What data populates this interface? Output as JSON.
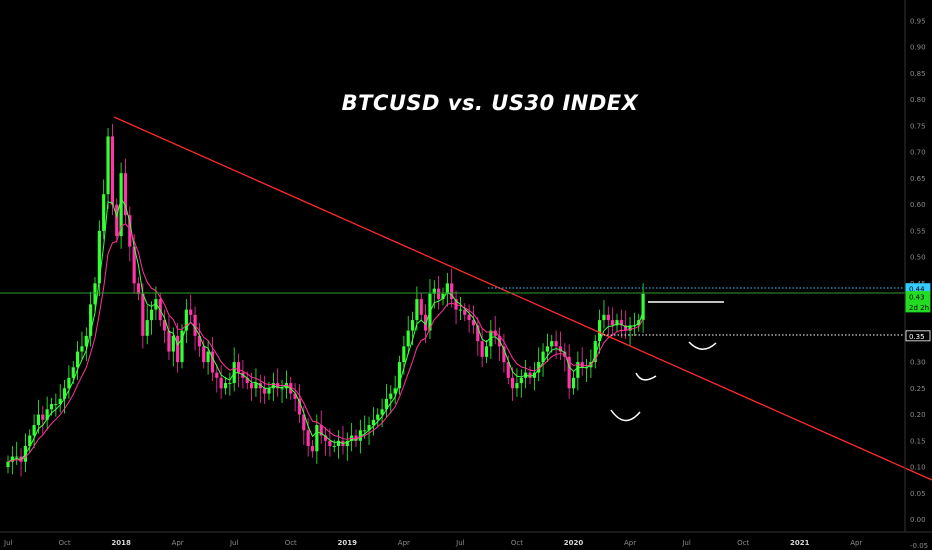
{
  "chart_data": {
    "type": "candlestick",
    "title": "BTCUSD vs. US30 INDEX",
    "ylim": [
      -0.02,
      0.99
    ],
    "y_ticks": [
      "0.95",
      "0.90",
      "0.85",
      "0.80",
      "0.75",
      "0.70",
      "0.65",
      "0.60",
      "0.55",
      "0.50",
      "0.45",
      "0.40",
      "0.35",
      "0.30",
      "0.25",
      "0.20",
      "0.15",
      "0.10",
      "0.05",
      "0.00",
      "-0.05"
    ],
    "x_ticks": [
      {
        "label": "Jul",
        "t": 0,
        "year": false
      },
      {
        "label": "Oct",
        "t": 13,
        "year": false
      },
      {
        "label": "2018",
        "t": 26,
        "year": true
      },
      {
        "label": "Apr",
        "t": 39,
        "year": false
      },
      {
        "label": "Jul",
        "t": 52,
        "year": false
      },
      {
        "label": "Oct",
        "t": 65,
        "year": false
      },
      {
        "label": "2019",
        "t": 78,
        "year": true
      },
      {
        "label": "Apr",
        "t": 91,
        "year": false
      },
      {
        "label": "Jul",
        "t": 104,
        "year": false
      },
      {
        "label": "Oct",
        "t": 117,
        "year": false
      },
      {
        "label": "2020",
        "t": 130,
        "year": true
      },
      {
        "label": "Apr",
        "t": 143,
        "year": false
      },
      {
        "label": "Jul",
        "t": 156,
        "year": false
      },
      {
        "label": "Oct",
        "t": 169,
        "year": false
      },
      {
        "label": "2021",
        "t": 182,
        "year": true
      },
      {
        "label": "Apr",
        "t": 195,
        "year": false
      }
    ],
    "price_labels": [
      {
        "text": "0.44",
        "value": 0.44,
        "color": "#33ccff"
      },
      {
        "text": "0.43",
        "value": 0.425,
        "color": "#22dd22"
      },
      {
        "text": "2d 2h",
        "value": 0.405,
        "color": "#22dd22"
      },
      {
        "text": "0.35",
        "value": 0.35,
        "color": "#ffffff"
      }
    ],
    "closes": [
      0.11,
      0.12,
      0.12,
      0.11,
      0.14,
      0.16,
      0.18,
      0.2,
      0.19,
      0.21,
      0.22,
      0.22,
      0.23,
      0.25,
      0.27,
      0.29,
      0.32,
      0.33,
      0.35,
      0.41,
      0.45,
      0.55,
      0.62,
      0.73,
      0.6,
      0.54,
      0.66,
      0.58,
      0.52,
      0.45,
      0.43,
      0.35,
      0.38,
      0.4,
      0.42,
      0.38,
      0.36,
      0.32,
      0.35,
      0.3,
      0.36,
      0.4,
      0.39,
      0.35,
      0.33,
      0.3,
      0.32,
      0.28,
      0.27,
      0.25,
      0.26,
      0.26,
      0.3,
      0.28,
      0.27,
      0.26,
      0.25,
      0.26,
      0.25,
      0.24,
      0.25,
      0.26,
      0.25,
      0.25,
      0.26,
      0.24,
      0.23,
      0.2,
      0.17,
      0.14,
      0.13,
      0.18,
      0.16,
      0.15,
      0.14,
      0.14,
      0.15,
      0.14,
      0.15,
      0.16,
      0.15,
      0.17,
      0.17,
      0.18,
      0.19,
      0.2,
      0.21,
      0.23,
      0.24,
      0.25,
      0.3,
      0.33,
      0.36,
      0.38,
      0.42,
      0.39,
      0.36,
      0.43,
      0.44,
      0.42,
      0.43,
      0.45,
      0.42,
      0.4,
      0.4,
      0.39,
      0.38,
      0.37,
      0.34,
      0.31,
      0.33,
      0.36,
      0.35,
      0.33,
      0.3,
      0.27,
      0.25,
      0.26,
      0.27,
      0.28,
      0.27,
      0.28,
      0.3,
      0.32,
      0.33,
      0.34,
      0.33,
      0.32,
      0.31,
      0.25,
      0.27,
      0.3,
      0.29,
      0.29,
      0.3,
      0.34,
      0.38,
      0.39,
      0.38,
      0.37,
      0.38,
      0.37,
      0.36,
      0.37,
      0.37,
      0.38,
      0.43
    ]
  }
}
